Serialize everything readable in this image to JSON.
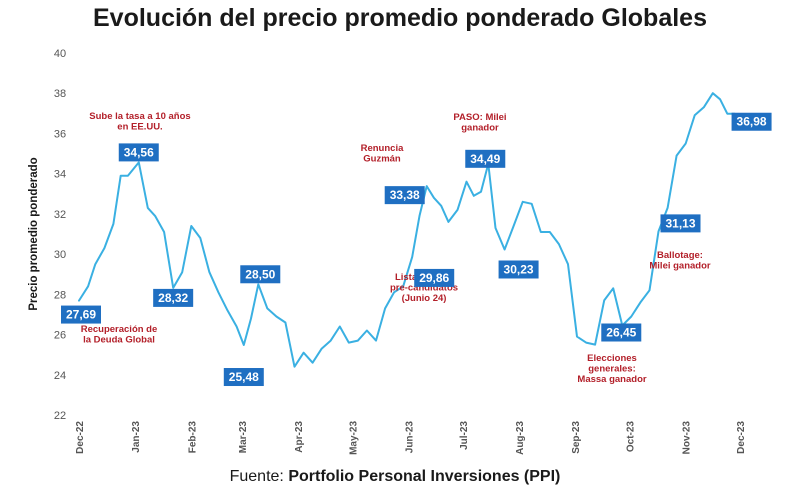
{
  "chart_data": {
    "type": "line",
    "title": "Evolución del precio promedio ponderado Globales",
    "ylabel": "Precio promedio ponderado",
    "xlabel": "",
    "ylim": [
      22,
      40
    ],
    "y_ticks": [
      22,
      24,
      26,
      28,
      30,
      32,
      34,
      36,
      38,
      40
    ],
    "x_ticks": [
      "Dec-22",
      "Jan-23",
      "Feb-23",
      "Mar-23",
      "Apr-23",
      "May-23",
      "Jun-23",
      "Jul-23",
      "Aug-23",
      "Sep-23",
      "Oct-23",
      "Nov-23",
      "Dec-23"
    ],
    "x": [
      "2022-12-01",
      "2022-12-06",
      "2022-12-10",
      "2022-12-15",
      "2022-12-20",
      "2022-12-24",
      "2022-12-28",
      "2023-01-03",
      "2023-01-08",
      "2023-01-12",
      "2023-01-17",
      "2023-01-22",
      "2023-01-27",
      "2023-02-01",
      "2023-02-06",
      "2023-02-11",
      "2023-02-16",
      "2023-02-21",
      "2023-02-26",
      "2023-03-02",
      "2023-03-06",
      "2023-03-10",
      "2023-03-15",
      "2023-03-20",
      "2023-03-25",
      "2023-03-30",
      "2023-04-04",
      "2023-04-09",
      "2023-04-14",
      "2023-04-19",
      "2023-04-24",
      "2023-04-29",
      "2023-05-04",
      "2023-05-09",
      "2023-05-14",
      "2023-05-19",
      "2023-05-24",
      "2023-05-29",
      "2023-06-03",
      "2023-06-07",
      "2023-06-11",
      "2023-06-15",
      "2023-06-19",
      "2023-06-23",
      "2023-06-28",
      "2023-07-03",
      "2023-07-07",
      "2023-07-11",
      "2023-07-15",
      "2023-07-19",
      "2023-07-24",
      "2023-07-29",
      "2023-08-03",
      "2023-08-08",
      "2023-08-13",
      "2023-08-18",
      "2023-08-23",
      "2023-08-28",
      "2023-09-02",
      "2023-09-07",
      "2023-09-12",
      "2023-09-17",
      "2023-09-22",
      "2023-09-27",
      "2023-10-02",
      "2023-10-07",
      "2023-10-12",
      "2023-10-17",
      "2023-10-22",
      "2023-10-27",
      "2023-11-01",
      "2023-11-06",
      "2023-11-11",
      "2023-11-16",
      "2023-11-20",
      "2023-11-24",
      "2023-11-28"
    ],
    "series": [
      {
        "values": [
          27.69,
          28.4,
          29.5,
          30.3,
          31.5,
          33.9,
          33.9,
          34.56,
          32.3,
          31.9,
          31.1,
          28.32,
          29.1,
          31.4,
          30.8,
          29.1,
          28.1,
          27.2,
          26.4,
          25.48,
          26.8,
          28.5,
          27.3,
          26.9,
          26.6,
          24.4,
          25.1,
          24.6,
          25.3,
          25.7,
          26.4,
          25.6,
          25.7,
          26.2,
          25.7,
          27.3,
          28.1,
          28.4,
          29.86,
          31.9,
          33.38,
          32.8,
          32.4,
          31.6,
          32.2,
          33.6,
          32.9,
          33.1,
          34.49,
          31.3,
          30.23,
          31.4,
          32.6,
          32.5,
          31.1,
          31.1,
          30.5,
          29.5,
          25.9,
          25.6,
          25.5,
          27.7,
          28.3,
          26.45,
          26.9,
          27.6,
          28.2,
          31.13,
          32.3,
          34.9,
          35.5,
          36.9,
          37.3,
          38.0,
          37.7,
          36.98,
          36.98
        ],
        "color": "#3ab0e2"
      }
    ],
    "value_labels": [
      {
        "x": "2022-12-01",
        "y": 27.69,
        "text": "27,69"
      },
      {
        "x": "2023-01-03",
        "y": 34.56,
        "text": "34,56"
      },
      {
        "x": "2023-01-22",
        "y": 28.32,
        "text": "28,32"
      },
      {
        "x": "2023-03-02",
        "y": 25.48,
        "text": "25,48"
      },
      {
        "x": "2023-03-10",
        "y": 28.5,
        "text": "28,50"
      },
      {
        "x": "2023-06-11",
        "y": 33.38,
        "text": "33,38"
      },
      {
        "x": "2023-06-03",
        "y": 29.86,
        "text": "29,86"
      },
      {
        "x": "2023-07-15",
        "y": 34.49,
        "text": "34,49"
      },
      {
        "x": "2023-07-24",
        "y": 30.23,
        "text": "30,23"
      },
      {
        "x": "2023-09-27",
        "y": 26.45,
        "text": "26,45"
      },
      {
        "x": "2023-10-17",
        "y": 31.13,
        "text": "31,13"
      },
      {
        "x": "2023-11-28",
        "y": 36.98,
        "text": "36,98"
      }
    ],
    "annotations": [
      {
        "lines": [
          "Sube la tasa a 10 años",
          "en EE.UU."
        ],
        "x": "2023-01-03"
      },
      {
        "lines": [
          "Recuperación de",
          "la Deuda Global"
        ],
        "x": "2022-12-15"
      },
      {
        "lines": [
          "Renuncia",
          "Guzmán"
        ],
        "x": "2023-06-11"
      },
      {
        "lines": [
          "Lista final de",
          "pre-candidatos",
          "(Junio 24)"
        ],
        "x": "2023-06-03"
      },
      {
        "lines": [
          "PASO: Milei",
          "ganador"
        ],
        "x": "2023-07-15"
      },
      {
        "lines": [
          "Elecciones",
          "generales:",
          "Massa ganador"
        ],
        "x": "2023-09-27"
      },
      {
        "lines": [
          "Ballotage:",
          "Milei ganador"
        ],
        "x": "2023-10-22"
      }
    ],
    "grid": false,
    "legend": "none"
  },
  "source": {
    "prefix": "Fuente: ",
    "name": "Portfolio Personal Inversiones (PPI)"
  }
}
